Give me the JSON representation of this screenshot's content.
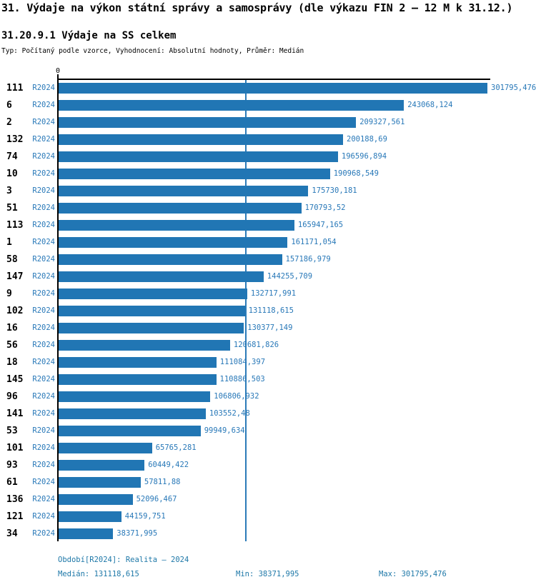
{
  "header": {
    "title": "31. Výdaje na výkon státní správy a samosprávy (dle výkazu FIN 2 – 12 M k 31.12.)",
    "subtitle": "31.20.9.1 Výdaje na SS celkem",
    "type_line": "Typ: Počítaný podle vzorce, Vyhodnocení: Absolutní hodnoty, Průměr: Medián"
  },
  "chart_data": {
    "type": "bar",
    "orientation": "horizontal",
    "series_label": "R2024",
    "categories": [
      "111",
      "6",
      "2",
      "132",
      "74",
      "10",
      "3",
      "51",
      "113",
      "1",
      "58",
      "147",
      "9",
      "102",
      "16",
      "56",
      "18",
      "145",
      "96",
      "141",
      "53",
      "101",
      "93",
      "61",
      "136",
      "121",
      "34"
    ],
    "values": [
      301795.476,
      243068.124,
      209327.561,
      200188.69,
      196596.894,
      190968.549,
      175730.181,
      170793.52,
      165947.165,
      161171.054,
      157186.979,
      144255.709,
      132717.991,
      131118.615,
      130377.149,
      120681.826,
      111084.397,
      110886.503,
      106806.932,
      103552.48,
      99949.634,
      65765.281,
      60449.422,
      57811.88,
      52096.467,
      44159.751,
      38371.995
    ],
    "value_labels": [
      "301795,476",
      "243068,124",
      "209327,561",
      "200188,69",
      "196596,894",
      "190968,549",
      "175730,181",
      "170793,52",
      "165947,165",
      "161171,054",
      "157186,979",
      "144255,709",
      "132717,991",
      "131118,615",
      "130377,149",
      "120681,826",
      "111084,397",
      "110886,503",
      "106806,932",
      "103552,48",
      "99949,634",
      "65765,281",
      "60449,422",
      "57811,88",
      "52096,467",
      "44159,751",
      "38371,995"
    ],
    "median_value": 131118.615,
    "x_axis_ticks": [
      "0"
    ],
    "xlim": [
      0,
      304000
    ],
    "legend_position": "none",
    "grid": "median-line-only",
    "colors": {
      "bar": "#2176b4",
      "value_text": "#2878b8",
      "median_line": "#2b7bb8",
      "axis": "#000000"
    }
  },
  "axis": {
    "zero_label": "0"
  },
  "footer": {
    "period": "Období[R2024]: Realita – 2024",
    "median": "Medián: 131118,615",
    "min": "Min: 38371,995",
    "max": "Max: 301795,476"
  }
}
